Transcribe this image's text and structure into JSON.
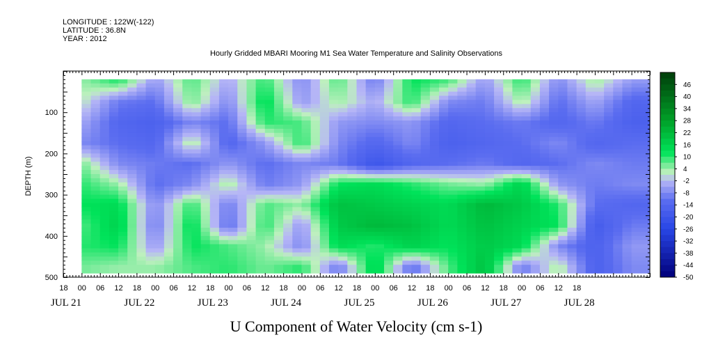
{
  "header": {
    "longitude": "LONGITUDE : 122W(-122)",
    "latitude": "LATITUDE : 36.8N",
    "year": "YEAR : 2012",
    "title": "Hourly Gridded MBARI Mooring M1 Sea Water Temperature and Salinity Observations"
  },
  "chart_data": {
    "type": "heatmap",
    "title": "Hourly Gridded MBARI Mooring M1 Sea Water Temperature and Salinity Observations",
    "xlabel": "U Component of Water Velocity (cm s-1)",
    "ylabel": "DEPTH (m)",
    "xlim_hours": [
      -6,
      186
    ],
    "ylim": [
      0,
      500
    ],
    "y_reversed": true,
    "y_ticks": [
      100,
      200,
      300,
      400,
      500
    ],
    "x_hour_ticks": [
      "18",
      "00",
      "06",
      "12",
      "18",
      "00",
      "06",
      "12",
      "18",
      "00",
      "06",
      "12",
      "18",
      "00",
      "06",
      "12",
      "18",
      "00",
      "06",
      "12",
      "18",
      "00",
      "06",
      "12",
      "18",
      "00",
      "06",
      "12",
      "18"
    ],
    "x_date_labels": [
      "JUL 21",
      "JUL 22",
      "JUL 23",
      "JUL 24",
      "JUL 25",
      "JUL 26",
      "JUL 27",
      "JUL 28"
    ],
    "colorbar_ticks": [
      46,
      40,
      34,
      28,
      22,
      16,
      10,
      4,
      -2,
      -8,
      -14,
      -20,
      -26,
      -32,
      -38,
      -44,
      -50
    ],
    "colorbar_range": [
      -50,
      52
    ],
    "colors": {
      "positive": "#00e35a",
      "negative": "#5a6cf0",
      "near_zero": "#b6b6f6",
      "high": "#003d0a",
      "low": "#00007a"
    },
    "data_depth_range": [
      20,
      490
    ],
    "data_hours": [
      0,
      186
    ],
    "hour_columns": [
      0,
      12,
      24,
      36,
      48,
      60,
      72,
      84,
      96,
      108,
      120,
      132,
      144,
      156,
      168,
      180
    ],
    "depth_rows": [
      25,
      75,
      125,
      175,
      225,
      275,
      325,
      375,
      425,
      475
    ],
    "values": [
      [
        4,
        10,
        -6,
        8,
        -4,
        10,
        -8,
        8,
        -10,
        12,
        8,
        -6,
        10,
        -8,
        4,
        -6
      ],
      [
        2,
        -10,
        -12,
        6,
        -8,
        14,
        -6,
        4,
        -4,
        10,
        -8,
        -10,
        4,
        -12,
        -4,
        -14
      ],
      [
        -4,
        -14,
        -16,
        -8,
        -12,
        10,
        8,
        -6,
        -8,
        -6,
        -14,
        -12,
        -10,
        -14,
        -10,
        -16
      ],
      [
        -8,
        -12,
        -14,
        4,
        -14,
        -6,
        10,
        -8,
        -14,
        -8,
        -16,
        -14,
        -12,
        -8,
        -14,
        -12
      ],
      [
        6,
        -8,
        -10,
        -12,
        -6,
        -12,
        -8,
        -10,
        -20,
        -14,
        -12,
        -10,
        -14,
        -12,
        -8,
        -10
      ],
      [
        10,
        4,
        -12,
        -8,
        4,
        -10,
        -6,
        12,
        14,
        10,
        6,
        4,
        16,
        -6,
        -10,
        -8
      ],
      [
        12,
        14,
        -8,
        10,
        -10,
        8,
        4,
        20,
        18,
        16,
        14,
        22,
        18,
        10,
        -12,
        -14
      ],
      [
        8,
        16,
        -10,
        14,
        -12,
        10,
        -6,
        18,
        22,
        20,
        14,
        20,
        16,
        12,
        -18,
        -10
      ],
      [
        10,
        12,
        -6,
        12,
        8,
        4,
        -8,
        14,
        10,
        16,
        12,
        18,
        14,
        -8,
        -16,
        -6
      ],
      [
        6,
        4,
        4,
        8,
        10,
        6,
        10,
        -10,
        16,
        -12,
        8,
        20,
        -10,
        4,
        -16,
        -8
      ]
    ]
  }
}
